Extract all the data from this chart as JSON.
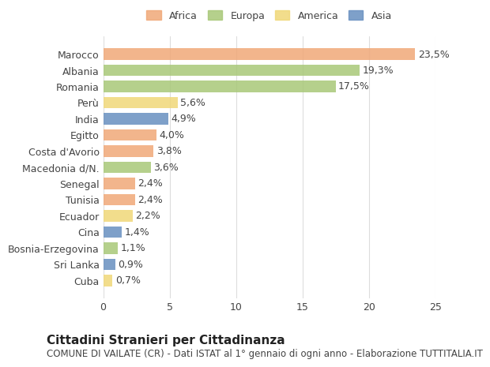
{
  "categories": [
    "Marocco",
    "Albania",
    "Romania",
    "Perù",
    "India",
    "Egitto",
    "Costa d'Avorio",
    "Macedonia d/N.",
    "Senegal",
    "Tunisia",
    "Ecuador",
    "Cina",
    "Bosnia-Erzegovina",
    "Sri Lanka",
    "Cuba"
  ],
  "values": [
    23.5,
    19.3,
    17.5,
    5.6,
    4.9,
    4.0,
    3.8,
    3.6,
    2.4,
    2.4,
    2.2,
    1.4,
    1.1,
    0.9,
    0.7
  ],
  "labels": [
    "23,5%",
    "19,3%",
    "17,5%",
    "5,6%",
    "4,9%",
    "4,0%",
    "3,8%",
    "3,6%",
    "2,4%",
    "2,4%",
    "2,2%",
    "1,4%",
    "1,1%",
    "0,9%",
    "0,7%"
  ],
  "continents": [
    "Africa",
    "Europa",
    "Europa",
    "America",
    "Asia",
    "Africa",
    "Africa",
    "Europa",
    "Africa",
    "Africa",
    "America",
    "Asia",
    "Europa",
    "Asia",
    "America"
  ],
  "continent_colors": {
    "Africa": "#F0A878",
    "Europa": "#A8C878",
    "America": "#F0D878",
    "Asia": "#6890C0"
  },
  "legend_order": [
    "Africa",
    "Europa",
    "America",
    "Asia"
  ],
  "title": "Cittadini Stranieri per Cittadinanza",
  "subtitle": "COMUNE DI VAILATE (CR) - Dati ISTAT al 1° gennaio di ogni anno - Elaborazione TUTTITALIA.IT",
  "xlim": [
    0,
    25
  ],
  "xticks": [
    0,
    5,
    10,
    15,
    20,
    25
  ],
  "background_color": "#ffffff",
  "grid_color": "#dddddd",
  "bar_height": 0.7,
  "label_fontsize": 9,
  "tick_fontsize": 9,
  "title_fontsize": 11,
  "subtitle_fontsize": 8.5
}
